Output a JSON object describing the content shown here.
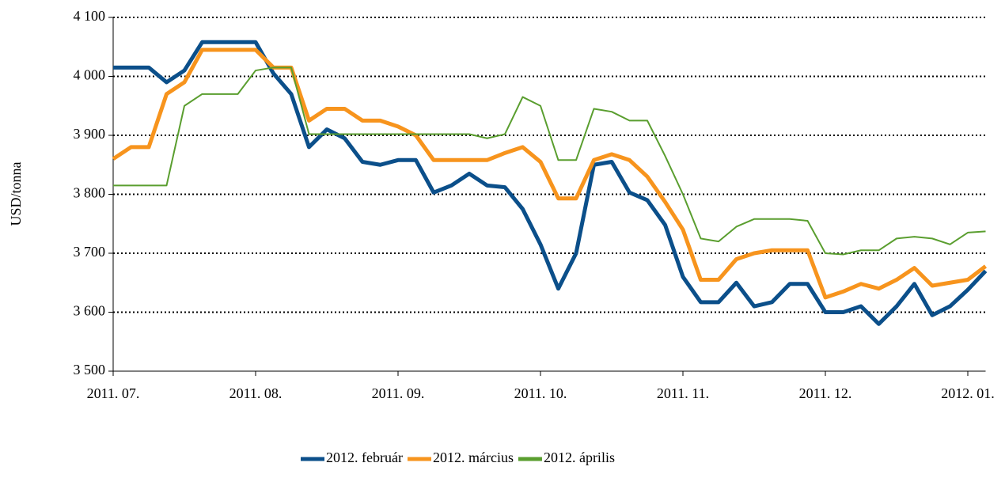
{
  "chart_data": {
    "type": "line",
    "y_label": "USD/tonna",
    "categories": [
      "2011. 07.",
      null,
      null,
      null,
      null,
      null,
      null,
      null,
      "2011. 08.",
      null,
      null,
      null,
      null,
      null,
      null,
      null,
      "2011. 09.",
      null,
      null,
      null,
      null,
      null,
      null,
      null,
      "2011. 10.",
      null,
      null,
      null,
      null,
      null,
      null,
      null,
      "2011. 11.",
      null,
      null,
      null,
      null,
      null,
      null,
      null,
      "2011. 12.",
      null,
      null,
      null,
      null,
      null,
      null,
      null,
      "2012. 01.",
      null
    ],
    "series": [
      {
        "name": "2012. február",
        "color": "#0b4f8a",
        "width": 5,
        "values": [
          4015,
          4015,
          4015,
          3990,
          4010,
          4058,
          4058,
          4058,
          4058,
          4005,
          3970,
          3880,
          3910,
          3895,
          3855,
          3850,
          3858,
          3858,
          3803,
          3815,
          3835,
          3815,
          3812,
          3775,
          3715,
          3640,
          3700,
          3850,
          3855,
          3803,
          3790,
          3748,
          3660,
          3617,
          3617,
          3650,
          3610,
          3617,
          3648,
          3648,
          3600,
          3600,
          3610,
          3580,
          3610,
          3648,
          3595,
          3610,
          3638,
          3670
        ]
      },
      {
        "name": "2012. március",
        "color": "#f7941d",
        "width": 5,
        "values": [
          3860,
          3880,
          3880,
          3970,
          3990,
          4045,
          4045,
          4045,
          4045,
          4015,
          4015,
          3925,
          3945,
          3945,
          3925,
          3925,
          3915,
          3900,
          3858,
          3858,
          3858,
          3858,
          3870,
          3880,
          3855,
          3793,
          3793,
          3858,
          3868,
          3858,
          3830,
          3787,
          3740,
          3655,
          3655,
          3690,
          3700,
          3705,
          3705,
          3705,
          3625,
          3635,
          3648,
          3640,
          3655,
          3675,
          3645,
          3650,
          3655,
          3678
        ]
      },
      {
        "name": "2012. április",
        "color": "#5a9e2f",
        "width": 2,
        "values": [
          3815,
          3815,
          3815,
          3815,
          3950,
          3970,
          3970,
          3970,
          4010,
          4015,
          4015,
          3902,
          3902,
          3902,
          3902,
          3902,
          3902,
          3902,
          3902,
          3902,
          3902,
          3895,
          3902,
          3965,
          3950,
          3858,
          3858,
          3945,
          3940,
          3925,
          3925,
          3865,
          3800,
          3725,
          3720,
          3745,
          3758,
          3758,
          3758,
          3755,
          3700,
          3698,
          3705,
          3705,
          3725,
          3728,
          3725,
          3715,
          3735,
          3737
        ]
      }
    ],
    "ylim": [
      3500,
      4100
    ],
    "yticks": [
      {
        "value": 3500,
        "label": "3 500"
      },
      {
        "value": 3600,
        "label": "3 600"
      },
      {
        "value": 3700,
        "label": "3 700"
      },
      {
        "value": 3800,
        "label": "3 800"
      },
      {
        "value": 3900,
        "label": "3 900"
      },
      {
        "value": 4000,
        "label": "4 000"
      },
      {
        "value": 4100,
        "label": "4 100"
      }
    ],
    "grid": true,
    "legend": "bottom"
  }
}
